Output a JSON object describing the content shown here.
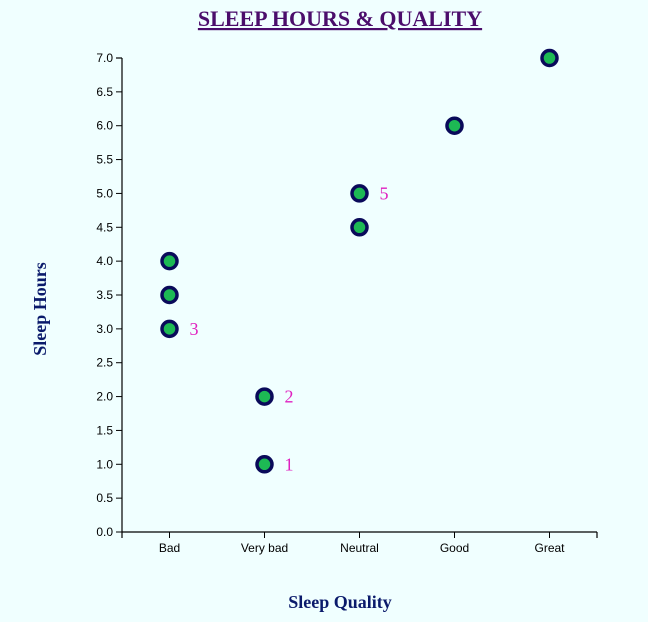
{
  "chart_data": {
    "type": "scatter",
    "title": "SLEEP HOURS & QUALITY",
    "xlabel": "Sleep Quality",
    "ylabel": "Sleep Hours",
    "categories": [
      "Bad",
      "Very bad",
      "Neutral",
      "Good",
      "Great"
    ],
    "ylim": [
      0,
      7
    ],
    "yticks": [
      "0.0",
      "0.5",
      "1.0",
      "1.5",
      "2.0",
      "2.5",
      "3.0",
      "3.5",
      "4.0",
      "4.5",
      "5.0",
      "5.5",
      "6.0",
      "6.5",
      "7.0"
    ],
    "points": [
      {
        "x": "Very bad",
        "y": 1.0,
        "label": "1"
      },
      {
        "x": "Very bad",
        "y": 2.0,
        "label": "2"
      },
      {
        "x": "Bad",
        "y": 3.0,
        "label": "3"
      },
      {
        "x": "Bad",
        "y": 3.5,
        "label": ""
      },
      {
        "x": "Bad",
        "y": 4.0,
        "label": ""
      },
      {
        "x": "Neutral",
        "y": 4.5,
        "label": ""
      },
      {
        "x": "Neutral",
        "y": 5.0,
        "label": "5"
      },
      {
        "x": "Good",
        "y": 6.0,
        "label": ""
      },
      {
        "x": "Great",
        "y": 7.0,
        "label": ""
      }
    ],
    "colors": {
      "title": "#4b0d6b",
      "axis_title": "#0a1a6b",
      "point_fill": "#1db954",
      "point_stroke": "#0a0a5a",
      "point_label": "#e020c0",
      "axis": "#000000"
    }
  }
}
